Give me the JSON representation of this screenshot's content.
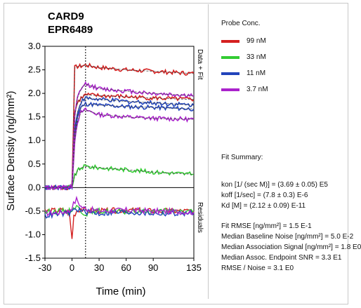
{
  "chart_data": {
    "type": "line",
    "title_lines": [
      "CARD9",
      "EPR6489"
    ],
    "xlabel": "Time (min)",
    "ylabel": "Surface Density (ng/mm²)",
    "xlim": [
      -30,
      135
    ],
    "ylim": [
      -1.5,
      3.0
    ],
    "x_ticks": [
      -30,
      0,
      30,
      60,
      90,
      135
    ],
    "x_tick_labels": [
      "-30",
      "0",
      "30",
      "60",
      "90",
      "135"
    ],
    "y_ticks": [
      -1.5,
      -1.0,
      -0.5,
      0.0,
      0.5,
      1.0,
      1.5,
      2.0,
      2.5,
      3.0
    ],
    "y_tick_labels": [
      "-1.5",
      "-1.0",
      "-0.5",
      "0.0",
      "0.5",
      "1.0",
      "1.5",
      "2.0",
      "2.5",
      "3.0"
    ],
    "injection_end_x": 15,
    "upper_panel_label": "Data + Fit",
    "lower_panel_label": "Residuals",
    "series": [
      {
        "name": "99 nM",
        "color": "#d42020",
        "curves": [
          {
            "x": [
              -30,
              -5,
              0,
              3,
              6,
              10,
              15,
              30,
              60,
              90,
              135
            ],
            "y": [
              0,
              0,
              0.05,
              2.55,
              2.57,
              2.58,
              2.6,
              2.55,
              2.5,
              2.47,
              2.42
            ]
          },
          {
            "x": [
              -30,
              -5,
              0,
              3,
              6,
              10,
              15,
              30,
              60,
              90,
              135
            ],
            "y": [
              0,
              0,
              0.05,
              1.6,
              1.8,
              1.9,
              1.97,
              1.95,
              1.93,
              1.9,
              1.87
            ]
          }
        ]
      },
      {
        "name": "33 nM",
        "color": "#33cc33",
        "curves": [
          {
            "x": [
              -30,
              -5,
              0,
              3,
              6,
              10,
              15,
              30,
              60,
              90,
              135
            ],
            "y": [
              0,
              0,
              0.02,
              0.25,
              0.35,
              0.42,
              0.45,
              0.42,
              0.38,
              0.33,
              0.28
            ]
          }
        ]
      },
      {
        "name": "11 nM",
        "color": "#2244bb",
        "curves": [
          {
            "x": [
              -30,
              -5,
              0,
              3,
              6,
              10,
              15,
              30,
              60,
              90,
              135
            ],
            "y": [
              0,
              0,
              0.02,
              1.2,
              1.6,
              1.82,
              1.9,
              1.87,
              1.83,
              1.8,
              1.75
            ]
          },
          {
            "x": [
              -30,
              -5,
              0,
              3,
              6,
              10,
              15,
              30,
              60,
              90,
              135
            ],
            "y": [
              0,
              0,
              0.02,
              1.1,
              1.5,
              1.7,
              1.78,
              1.75,
              1.72,
              1.7,
              1.67
            ]
          }
        ]
      },
      {
        "name": "3.7 nM",
        "color": "#aa22cc",
        "curves": [
          {
            "x": [
              -30,
              -5,
              0,
              3,
              6,
              10,
              15,
              30,
              60,
              90,
              135
            ],
            "y": [
              0,
              0,
              0.02,
              1.5,
              1.9,
              2.1,
              2.2,
              2.1,
              2.05,
              2.0,
              1.95
            ]
          },
          {
            "x": [
              -30,
              -5,
              0,
              3,
              6,
              10,
              15,
              30,
              60,
              90,
              135
            ],
            "y": [
              0,
              0,
              0.02,
              1.0,
              1.4,
              1.6,
              1.65,
              1.55,
              1.5,
              1.47,
              1.45
            ]
          }
        ]
      }
    ],
    "residual_series": [
      {
        "color": "#d42020",
        "x": [
          -30,
          -10,
          -3,
          0,
          2,
          5,
          10,
          15,
          30,
          60,
          90,
          135
        ],
        "y": [
          -0.5,
          -0.48,
          -0.55,
          -1.1,
          -0.6,
          -0.5,
          -0.45,
          -0.5,
          -0.5,
          -0.48,
          -0.5,
          -0.5
        ]
      },
      {
        "color": "#33cc33",
        "x": [
          -30,
          -10,
          -3,
          0,
          5,
          10,
          15,
          30,
          60,
          90,
          135
        ],
        "y": [
          -0.52,
          -0.5,
          -0.5,
          -0.45,
          -0.4,
          -0.5,
          -0.55,
          -0.5,
          -0.52,
          -0.5,
          -0.5
        ]
      },
      {
        "color": "#2244bb",
        "x": [
          -30,
          -10,
          -3,
          0,
          5,
          10,
          15,
          30,
          60,
          90,
          135
        ],
        "y": [
          -0.6,
          -0.55,
          -0.55,
          -0.5,
          -0.45,
          -0.5,
          -0.52,
          -0.55,
          -0.52,
          -0.55,
          -0.55
        ]
      },
      {
        "color": "#aa22cc",
        "x": [
          -30,
          -10,
          -3,
          0,
          5,
          10,
          15,
          30,
          60,
          90,
          135
        ],
        "y": [
          -0.55,
          -0.52,
          -0.5,
          -0.4,
          -0.25,
          -0.4,
          -0.45,
          -0.5,
          -0.48,
          -0.5,
          -0.52
        ]
      }
    ]
  },
  "legend": {
    "title": "Probe Conc.",
    "items": [
      {
        "label": "99 nM",
        "color": "#d42020"
      },
      {
        "label": "33 nM",
        "color": "#33cc33"
      },
      {
        "label": "11 nM",
        "color": "#2244bb"
      },
      {
        "label": "3.7 nM",
        "color": "#aa22cc"
      }
    ]
  },
  "fit_summary": {
    "title": "Fit Summary:",
    "kon": "kon  [1/ (sec M)]  =  (3.69 ± 0.05) E5",
    "koff": "koff  [1/sec]  =  (7.8 ± 0.3) E-6",
    "kd": "Kd  [M]  =  (2.12 ± 0.09) E-11",
    "rmse": "Fit RMSE [ng/mm²]  =  1.5 E-1",
    "baseline_noise": "Median Baseline Noise [ng/mm²]  =  5.0 E-2",
    "assoc_signal": "Median Association Signal [ng/mm²]  =  1.8 E0",
    "snr": "Median Assoc. Endpoint SNR  =  3.3 E1",
    "rmse_noise": "RMSE / Noise  =  3.1 E0"
  }
}
